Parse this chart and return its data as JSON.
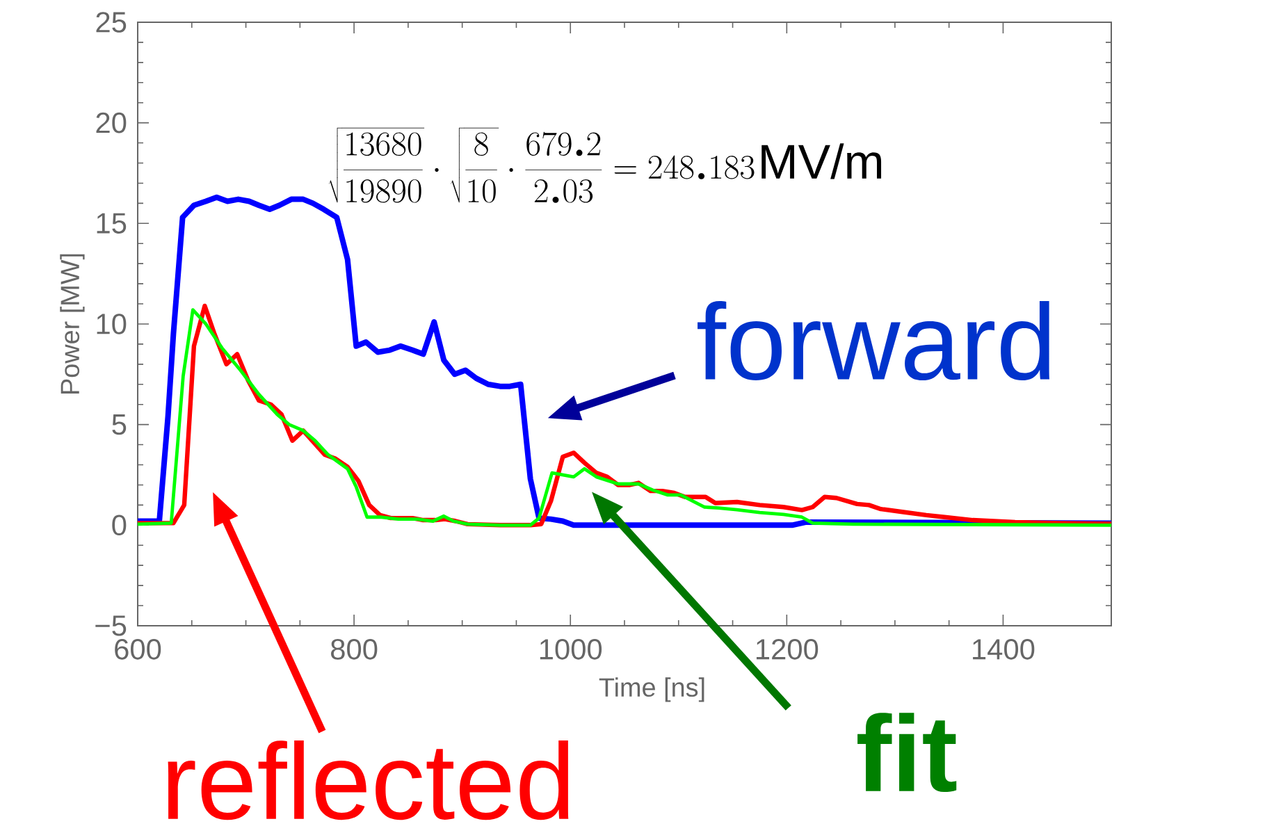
{
  "chart_data": {
    "type": "line",
    "xlabel": "Time  [ns]",
    "ylabel": "Power [MW]",
    "xlim": [
      600,
      1500
    ],
    "ylim": [
      -5,
      25
    ],
    "xticks": [
      600,
      800,
      1000,
      1200,
      1400
    ],
    "yticks": [
      {
        "value": -5,
        "label": "−5"
      },
      0,
      5,
      10,
      15,
      20,
      25
    ],
    "series": [
      {
        "color": "#0000ff",
        "x": [
          600,
          620,
          628,
          633,
          641.5,
          652,
          663,
          673,
          683,
          693,
          703,
          712,
          722,
          731,
          742,
          753,
          762,
          772,
          784,
          794,
          802,
          811,
          822,
          833,
          843,
          854,
          864,
          874,
          883,
          893,
          903,
          913,
          924,
          935,
          944,
          954,
          963,
          971,
          982,
          993,
          1003,
          1205,
          1218,
          1500
        ],
        "values": [
          0.2,
          0.2,
          5.4,
          9.5,
          15.3,
          15.9,
          16.1,
          16.3,
          16.1,
          16.2,
          16.1,
          15.9,
          15.7,
          15.9,
          16.2,
          16.2,
          16.0,
          15.7,
          15.3,
          13.2,
          8.9,
          9.1,
          8.6,
          8.7,
          8.9,
          8.7,
          8.5,
          10.1,
          8.2,
          7.5,
          7.7,
          7.3,
          7.0,
          6.9,
          6.9,
          7.0,
          2.3,
          0.35,
          0.3,
          0.2,
          0,
          0,
          0.15,
          0.1
        ]
      },
      {
        "color": "#ff0000",
        "x": [
          600,
          633,
          643,
          652,
          662,
          671,
          682,
          692,
          702,
          712,
          723,
          733,
          743,
          753,
          763,
          773,
          783,
          794,
          804,
          814,
          824,
          834,
          845,
          854,
          864,
          875,
          884,
          894,
          905,
          935,
          963,
          973,
          982,
          993,
          1003,
          1013,
          1024,
          1034,
          1044,
          1055,
          1063,
          1074,
          1085,
          1096,
          1106,
          1117,
          1125,
          1134,
          1154,
          1175,
          1197,
          1214,
          1224,
          1235,
          1246,
          1265,
          1276,
          1287,
          1308,
          1329,
          1346,
          1372,
          1411,
          1454,
          1500
        ],
        "values": [
          0.1,
          0.1,
          1.0,
          8.9,
          10.9,
          9.5,
          8.0,
          8.5,
          7.2,
          6.2,
          6.0,
          5.5,
          4.2,
          4.7,
          4.1,
          3.5,
          3.3,
          2.9,
          2.2,
          1.0,
          0.5,
          0.35,
          0.35,
          0.35,
          0.25,
          0.25,
          0.3,
          0.2,
          0.05,
          0,
          0,
          0.05,
          1.2,
          3.4,
          3.6,
          3.1,
          2.6,
          2.4,
          2.0,
          2.0,
          2.1,
          1.7,
          1.7,
          1.6,
          1.4,
          1.4,
          1.4,
          1.1,
          1.15,
          1.0,
          0.9,
          0.75,
          0.9,
          1.4,
          1.35,
          1.05,
          1.0,
          0.8,
          0.65,
          0.5,
          0.4,
          0.25,
          0.15,
          0.1,
          0.07
        ]
      },
      {
        "color": "#00ff00",
        "x": [
          600,
          631,
          642,
          651,
          663,
          678,
          695,
          712,
          729,
          740,
          753,
          764,
          776,
          794,
          802,
          812,
          824,
          841,
          858,
          873,
          883,
          892,
          905,
          935,
          963,
          971,
          983,
          1003,
          1013,
          1024,
          1044,
          1063,
          1076,
          1090,
          1102,
          1124,
          1137,
          1154,
          1175,
          1197,
          1214,
          1224,
          1261,
          1500
        ],
        "values": [
          0.05,
          0.1,
          7.4,
          10.7,
          10.0,
          8.8,
          7.7,
          6.5,
          5.5,
          5.0,
          4.7,
          4.2,
          3.5,
          2.8,
          1.9,
          0.4,
          0.4,
          0.3,
          0.3,
          0.2,
          0.45,
          0.2,
          0.05,
          0,
          0,
          0.35,
          2.6,
          2.4,
          2.8,
          2.4,
          2.05,
          2.05,
          1.75,
          1.5,
          1.5,
          0.9,
          0.85,
          0.77,
          0.63,
          0.53,
          0.4,
          0.1,
          0.05,
          0
        ]
      }
    ],
    "annotations": [
      "\\sqrt{\\frac{13680}{19890}}\\cdot\\sqrt{\\frac{8}{10}}\\cdot\\frac{679.2}{2.03}=248.183",
      "MV/m",
      "forward",
      "reflected",
      "fit"
    ]
  }
}
